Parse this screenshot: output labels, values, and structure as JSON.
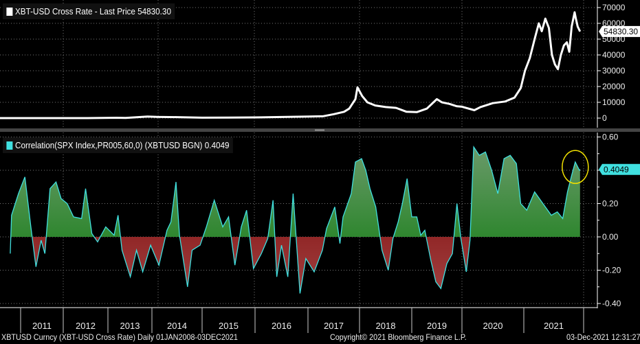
{
  "chart_data": [
    {
      "type": "line",
      "title": "XBT-USD Cross Rate - Last Price 54830.30",
      "legend_label": "XBT-USD Cross Rate - Last Price",
      "last_value": "54830.30",
      "color": "#ffffff",
      "ylim": [
        0,
        70000
      ],
      "yticks": [
        "70000",
        "60000",
        "50000",
        "40000",
        "30000",
        "20000",
        "10000",
        "0"
      ],
      "ytick_values": [
        70000,
        60000,
        50000,
        40000,
        30000,
        20000,
        10000,
        0
      ],
      "grid": true,
      "legend_position": "top-left",
      "x": [
        2010.6,
        2011.4,
        2012.5,
        2013.2,
        2013.4,
        2013.9,
        2014.1,
        2014.5,
        2015.0,
        2015.5,
        2016.0,
        2016.5,
        2017.0,
        2017.3,
        2017.5,
        2017.7,
        2017.8,
        2017.92,
        2017.96,
        2018.05,
        2018.15,
        2018.3,
        2018.5,
        2018.7,
        2018.9,
        2019.1,
        2019.3,
        2019.5,
        2019.6,
        2019.75,
        2019.9,
        2020.0,
        2020.2,
        2020.3,
        2020.5,
        2020.7,
        2020.85,
        2020.95,
        2021.02,
        2021.1,
        2021.18,
        2021.25,
        2021.3,
        2021.36,
        2021.42,
        2021.47,
        2021.52,
        2021.57,
        2021.62,
        2021.67,
        2021.72,
        2021.76,
        2021.8,
        2021.85,
        2021.87,
        2021.9,
        2021.94
      ],
      "y": [
        0,
        20,
        10,
        200,
        100,
        1000,
        800,
        600,
        250,
        300,
        430,
        700,
        1000,
        1200,
        2500,
        4000,
        6000,
        12000,
        19500,
        14000,
        10000,
        8000,
        7000,
        6500,
        4000,
        3800,
        6000,
        12000,
        10000,
        9000,
        7500,
        7200,
        5000,
        7000,
        9500,
        10500,
        13000,
        19000,
        30000,
        38000,
        50000,
        60000,
        55000,
        63000,
        57000,
        40000,
        34000,
        31000,
        40000,
        46000,
        48000,
        42000,
        58000,
        67000,
        63000,
        58000,
        54830
      ]
    },
    {
      "type": "area",
      "title": "Correlation(SPX Index,PR005,60,0) (XBTUSD BGN) 0.4049",
      "legend_label": "Correlation(SPX Index,PR005,60,0) (XBTUSD BGN)",
      "last_value": "0.4049",
      "color": "#40e0e0",
      "positive_fill": "#1f8a1f",
      "negative_fill": "#8a1010",
      "ylim": [
        -0.45,
        0.6
      ],
      "yticks": [
        "0.60",
        "0.20",
        "0.00",
        "-0.20",
        "-0.40"
      ],
      "ytick_values": [
        0.6,
        0.2,
        0,
        -0.2,
        -0.4
      ],
      "annotation": {
        "type": "circle",
        "color": "#f0e000",
        "x": 2021.86,
        "y": 0.42
      },
      "x": [
        2010.76,
        2010.79,
        2010.95,
        2011.1,
        2011.24,
        2011.36,
        2011.48,
        2011.57,
        2011.69,
        2011.83,
        2011.95,
        2012.09,
        2012.23,
        2012.41,
        2012.5,
        2012.64,
        2012.77,
        2012.95,
        2013.14,
        2013.23,
        2013.32,
        2013.51,
        2013.65,
        2013.79,
        2013.97,
        2014.14,
        2014.3,
        2014.38,
        2014.48,
        2014.55,
        2014.71,
        2014.8,
        2014.96,
        2015.08,
        2015.23,
        2015.39,
        2015.5,
        2015.62,
        2015.74,
        2015.84,
        2015.97,
        2016.12,
        2016.24,
        2016.34,
        2016.41,
        2016.5,
        2016.62,
        2016.72,
        2016.85,
        2016.96,
        2017.12,
        2017.28,
        2017.36,
        2017.52,
        2017.62,
        2017.68,
        2017.84,
        2017.92,
        2018.04,
        2018.12,
        2018.2,
        2018.31,
        2018.43,
        2018.55,
        2018.64,
        2018.74,
        2018.82,
        2018.91,
        2019.0,
        2019.1,
        2019.18,
        2019.26,
        2019.38,
        2019.48,
        2019.58,
        2019.7,
        2019.81,
        2019.9,
        2019.98,
        2020.07,
        2020.13,
        2020.19,
        2020.28,
        2020.38,
        2020.48,
        2020.58,
        2020.68,
        2020.78,
        2020.88,
        2020.95,
        2021.05,
        2021.18,
        2021.32,
        2021.46,
        2021.56,
        2021.65,
        2021.73,
        2021.8,
        2021.86,
        2021.93,
        2021.94
      ],
      "y": [
        -0.1,
        0.13,
        0.26,
        0.36,
        0.06,
        -0.18,
        -0.02,
        -0.1,
        0.29,
        0.33,
        0.23,
        0.2,
        0.12,
        0.11,
        0.29,
        0.02,
        -0.03,
        0.06,
        0.01,
        0.13,
        -0.08,
        -0.24,
        -0.08,
        -0.21,
        -0.05,
        -0.17,
        0.04,
        0.09,
        0.33,
        0.01,
        -0.3,
        -0.08,
        -0.05,
        0.06,
        0.22,
        0.06,
        0.12,
        -0.17,
        0.06,
        0.16,
        -0.19,
        -0.1,
        -0.01,
        0.22,
        -0.24,
        -0.05,
        -0.24,
        0.26,
        -0.34,
        -0.13,
        -0.21,
        -0.08,
        0.05,
        0.18,
        -0.04,
        0.12,
        0.26,
        0.45,
        0.47,
        0.4,
        0.29,
        0.18,
        -0.08,
        -0.2,
        -0.01,
        0.09,
        0.2,
        0.35,
        0.12,
        0.12,
        0.01,
        0.04,
        -0.14,
        -0.27,
        -0.31,
        -0.16,
        -0.1,
        0.2,
        -0.01,
        -0.21,
        -0.02,
        0.54,
        0.49,
        0.51,
        0.4,
        0.26,
        0.47,
        0.49,
        0.44,
        0.2,
        0.16,
        0.27,
        0.2,
        0.13,
        0.15,
        0.11,
        0.27,
        0.37,
        0.45,
        0.4,
        0.4049
      ]
    }
  ],
  "x_axis": {
    "years": [
      "2011",
      "2012",
      "2013",
      "2014",
      "2015",
      "2016",
      "2017",
      "2018",
      "2019",
      "2020",
      "2021"
    ]
  },
  "footer": {
    "ticker": "XBTUSD Curncy (XBT-USD Cross Rate)  Daily 01JAN2008-03DEC2021",
    "copyright": "Copyright© 2021 Bloomberg Finance L.P.",
    "timestamp": "03-Dec-2021 12:31:27"
  }
}
